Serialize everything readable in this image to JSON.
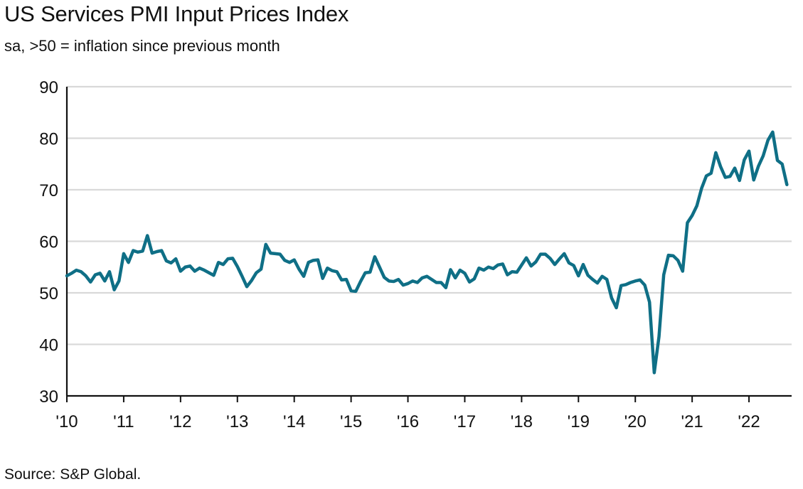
{
  "title": "US Services PMI Input Prices Index",
  "subtitle": "sa, >50 = inflation since previous month",
  "source": "Source: S&P Global.",
  "colors": {
    "line": "#0f6f86",
    "grid": "#d9d9d9",
    "axis": "#111111"
  },
  "chart_data": {
    "type": "line",
    "title": "US Services PMI Input Prices Index",
    "subtitle": "sa, >50 = inflation since previous month",
    "xlabel": "",
    "ylabel": "",
    "ylim": [
      30,
      90
    ],
    "yticks": [
      30,
      40,
      50,
      60,
      70,
      80,
      90
    ],
    "xlim": [
      2010.0,
      2022.75
    ],
    "xticks": [
      {
        "value": 2010,
        "label": "'10"
      },
      {
        "value": 2011,
        "label": "'11"
      },
      {
        "value": 2012,
        "label": "'12"
      },
      {
        "value": 2013,
        "label": "'13"
      },
      {
        "value": 2014,
        "label": "'14"
      },
      {
        "value": 2015,
        "label": "'15"
      },
      {
        "value": 2016,
        "label": "'16"
      },
      {
        "value": 2017,
        "label": "'17"
      },
      {
        "value": 2018,
        "label": "'18"
      },
      {
        "value": 2019,
        "label": "'19"
      },
      {
        "value": 2020,
        "label": "'20"
      },
      {
        "value": 2021,
        "label": "'21"
      },
      {
        "value": 2022,
        "label": "'22"
      }
    ],
    "grid": "horizontal",
    "x_start": "2010-01",
    "frequency": "monthly",
    "values": [
      53.3,
      53.8,
      54.4,
      54.1,
      53.3,
      52.1,
      53.5,
      53.8,
      52.3,
      54.1,
      50.6,
      52.3,
      57.6,
      55.9,
      58.2,
      57.9,
      58.1,
      61.1,
      57.7,
      58.0,
      58.2,
      56.2,
      55.8,
      56.6,
      54.2,
      55.0,
      55.2,
      54.2,
      54.8,
      54.4,
      53.9,
      53.4,
      55.9,
      55.5,
      56.6,
      56.7,
      55.1,
      53.2,
      51.2,
      52.4,
      53.9,
      54.6,
      59.4,
      57.7,
      57.6,
      57.5,
      56.3,
      55.9,
      56.4,
      54.6,
      53.2,
      55.9,
      56.3,
      56.4,
      52.8,
      54.8,
      54.3,
      54.1,
      52.5,
      52.6,
      50.4,
      50.3,
      52.2,
      53.9,
      54.0,
      57.0,
      55.0,
      53.0,
      52.3,
      52.2,
      52.6,
      51.5,
      51.8,
      52.3,
      52.0,
      52.9,
      53.2,
      52.6,
      52.0,
      52.0,
      51.0,
      54.5,
      52.9,
      54.4,
      53.8,
      52.1,
      52.7,
      54.8,
      54.4,
      55.0,
      54.7,
      55.4,
      55.6,
      53.5,
      54.1,
      54.0,
      55.4,
      56.8,
      55.2,
      56.0,
      57.5,
      57.5,
      56.7,
      55.5,
      56.6,
      57.6,
      55.8,
      55.3,
      53.3,
      55.5,
      53.4,
      52.6,
      51.9,
      53.2,
      52.6,
      49.0,
      47.1,
      51.4,
      51.6,
      52.0,
      52.3,
      52.5,
      51.5,
      48.2,
      34.5,
      41.5,
      53.5,
      57.3,
      57.2,
      56.3,
      54.2,
      63.6,
      65.0,
      66.9,
      70.3,
      72.7,
      73.2,
      77.2,
      74.5,
      72.4,
      72.6,
      74.2,
      71.8,
      75.8,
      77.5,
      71.9,
      74.6,
      76.6,
      79.6,
      81.2,
      75.7,
      75.0,
      71.0
    ]
  }
}
